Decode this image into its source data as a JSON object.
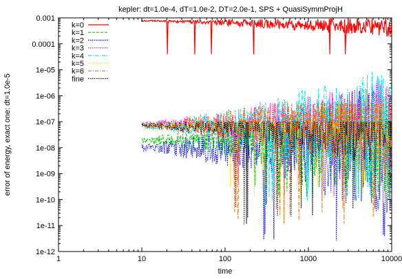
{
  "chart_data": {
    "type": "line",
    "title": "kepler: dt=1.0e-4, dT=1.0e-2, DT=2.0e-1, SPS + QuasiSymmProjH",
    "xlabel": "time",
    "ylabel": "error of energy, exact one: dt=1.0e-5",
    "x_scale": "log",
    "y_scale": "log",
    "xlim": [
      1,
      10000
    ],
    "ylim": [
      1e-12,
      0.001
    ],
    "x_ticks": [
      {
        "value": 1,
        "label": "1"
      },
      {
        "value": 10,
        "label": "10"
      },
      {
        "value": 100,
        "label": "100"
      },
      {
        "value": 1000,
        "label": "1000"
      },
      {
        "value": 10000,
        "label": "10000"
      }
    ],
    "y_ticks": [
      {
        "value": 0.001,
        "label": "0.001"
      },
      {
        "value": 0.0001,
        "label": "0.0001"
      },
      {
        "value": 1e-05,
        "label": "1e-05"
      },
      {
        "value": 1e-06,
        "label": "1e-06"
      },
      {
        "value": 1e-07,
        "label": "1e-07"
      },
      {
        "value": 1e-08,
        "label": "1e-08"
      },
      {
        "value": 1e-09,
        "label": "1e-09"
      },
      {
        "value": 1e-10,
        "label": "1e-10"
      },
      {
        "value": 1e-11,
        "label": "1e-11"
      },
      {
        "value": 1e-12,
        "label": "1e-12"
      }
    ],
    "grid": false,
    "legend_position": "top-left",
    "series": [
      {
        "name": "k=0",
        "color": "#ff0000",
        "dash": "solid",
        "x_range": [
          10,
          10000
        ],
        "level": 0.0008,
        "band": [
          0.0002,
          0.001
        ],
        "spike_down": 4e-05,
        "seed": 11
      },
      {
        "name": "k=1",
        "color": "#00cc00",
        "dash": "dashed",
        "x_range": [
          10,
          10000
        ],
        "level": 2e-08,
        "band": [
          1e-09,
          2e-05
        ],
        "spike_down": 1e-10,
        "seed": 23
      },
      {
        "name": "k=2",
        "color": "#0000ff",
        "dash": "dotted",
        "x_range": [
          10,
          10000
        ],
        "level": 1e-08,
        "band": [
          1e-10,
          1e-05
        ],
        "spike_down": 1e-12,
        "seed": 37
      },
      {
        "name": "k=3",
        "color": "#ff00ff",
        "dash": "dotted",
        "x_range": [
          10,
          10000
        ],
        "level": 8e-08,
        "band": [
          2e-09,
          5e-06
        ],
        "spike_down": 1e-10,
        "seed": 41
      },
      {
        "name": "k=4",
        "color": "#00e5e5",
        "dash": "dashdot",
        "x_range": [
          10,
          10000
        ],
        "level": 7e-08,
        "band": [
          1e-09,
          2e-05
        ],
        "spike_down": 5e-11,
        "seed": 53
      },
      {
        "name": "k=5",
        "color": "#ffe100",
        "dash": "dotted",
        "x_range": [
          10,
          10000
        ],
        "level": 7e-08,
        "band": [
          1e-09,
          1e-07
        ],
        "spike_down": 1e-10,
        "seed": 67
      },
      {
        "name": "k=6",
        "color": "#ff6600",
        "dash": "dashdot",
        "x_range": [
          10,
          10000
        ],
        "level": 7e-08,
        "band": [
          1e-10,
          5e-07
        ],
        "spike_down": 1e-11,
        "seed": 79
      },
      {
        "name": "fine",
        "color": "#000000",
        "dash": "dotted",
        "x_range": [
          10,
          10000
        ],
        "level": 7e-08,
        "band": [
          1e-10,
          1e-07
        ],
        "spike_down": 1e-11,
        "seed": 97
      }
    ]
  }
}
